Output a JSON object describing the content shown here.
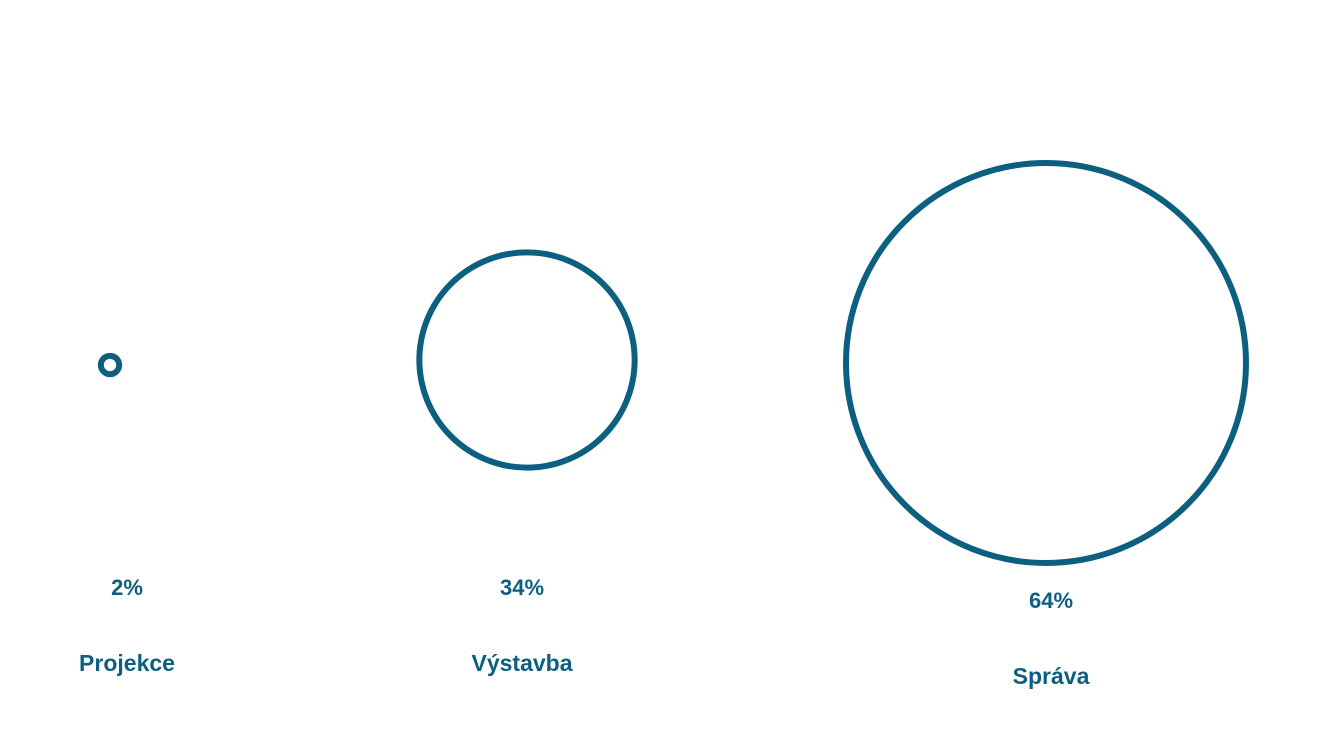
{
  "chart_data": {
    "type": "bubble",
    "categories": [
      "Projekce",
      "Výstavba",
      "Správa"
    ],
    "values": [
      2,
      34,
      64
    ],
    "value_labels": [
      "2%",
      "34%",
      "64%"
    ],
    "color": "#0d5f80"
  }
}
